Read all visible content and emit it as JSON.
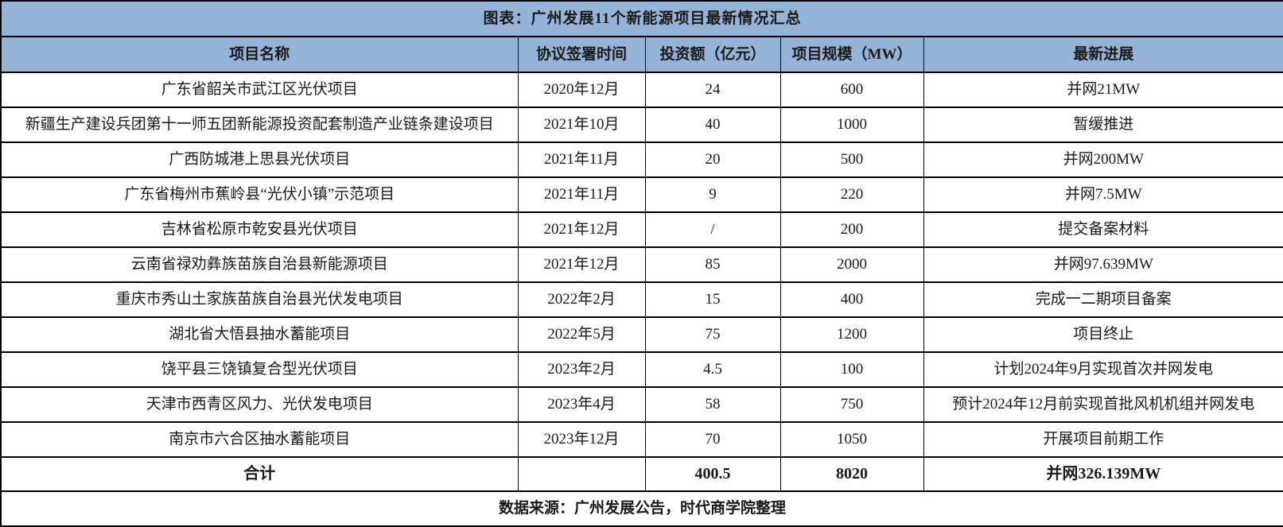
{
  "style": {
    "header_bg": "#95B3D7",
    "border_color": "#000000",
    "body_bg": "#FFFFFF",
    "title_text_color": "#000000",
    "body_text_color": "#1A1A1A",
    "date_text_color": "#3D3D3D"
  },
  "chart_data": {
    "type": "table",
    "title": "图表：广州发展11个新能源项目最新情况汇总",
    "columns": [
      "项目名称",
      "协议签署时间",
      "投资额（亿元）",
      "项目规模（MW）",
      "最新进展"
    ],
    "rows": [
      [
        "广东省韶关市武江区光伏项目",
        "2020年12月",
        "24",
        "600",
        "并网21MW"
      ],
      [
        "新疆生产建设兵团第十一师五团新能源投资配套制造产业链条建设项目",
        "2021年10月",
        "40",
        "1000",
        "暂缓推进"
      ],
      [
        "广西防城港上思县光伏项目",
        "2021年11月",
        "20",
        "500",
        "并网200MW"
      ],
      [
        "广东省梅州市蕉岭县“光伏小镇”示范项目",
        "2021年11月",
        "9",
        "220",
        "并网7.5MW"
      ],
      [
        "吉林省松原市乾安县光伏项目",
        "2021年12月",
        "/",
        "200",
        "提交备案材料"
      ],
      [
        "云南省禄劝彝族苗族自治县新能源项目",
        "2021年12月",
        "85",
        "2000",
        "并网97.639MW"
      ],
      [
        "重庆市秀山土家族苗族自治县光伏发电项目",
        "2022年2月",
        "15",
        "400",
        "完成一二期项目备案"
      ],
      [
        "湖北省大悟县抽水蓄能项目",
        "2022年5月",
        "75",
        "1200",
        "项目终止"
      ],
      [
        "饶平县三饶镇复合型光伏项目",
        "2023年2月",
        "4.5",
        "100",
        "计划2024年9月实现首次并网发电"
      ],
      [
        "天津市西青区风力、光伏发电项目",
        "2023年4月",
        "58",
        "750",
        "预计2024年12月前实现首批风机机组并网发电"
      ],
      [
        "南京市六合区抽水蓄能项目",
        "2023年12月",
        "70",
        "1050",
        "开展项目前期工作"
      ]
    ],
    "total_row": [
      "合计",
      "",
      "400.5",
      "8020",
      "并网326.139MW"
    ],
    "totals": {
      "investment_100m_yuan": 400.5,
      "scale_mw": 8020,
      "grid_connected_label": "并网326.139MW"
    },
    "source": "数据来源：广州发展公告，时代商学院整理"
  }
}
